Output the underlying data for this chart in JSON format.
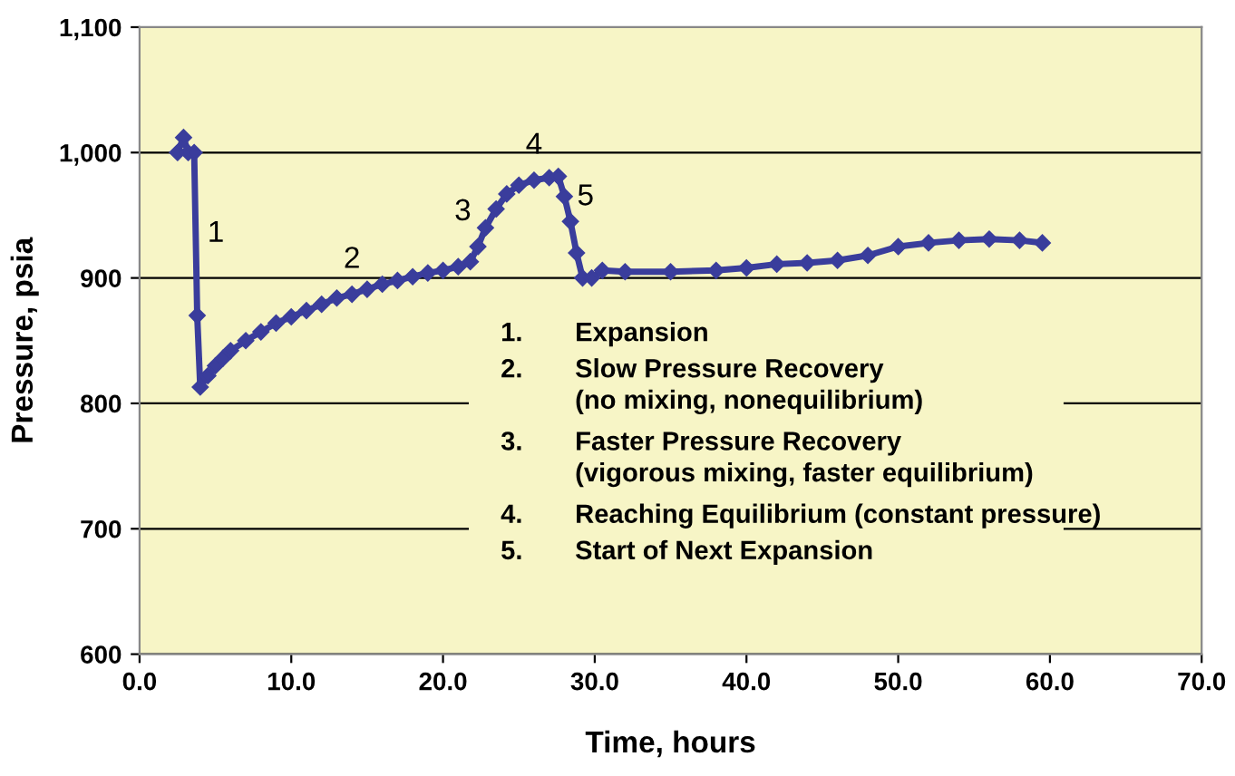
{
  "chart_data": {
    "type": "line",
    "xlabel": "Time, hours",
    "ylabel": "Pressure, psia",
    "x": [
      2.5,
      2.9,
      3.2,
      3.6,
      3.8,
      4.0,
      4.5,
      5,
      5.5,
      6,
      7,
      8,
      9,
      10,
      11,
      12,
      13,
      14,
      15,
      16,
      17,
      18,
      19,
      20,
      21,
      21.8,
      22.3,
      22.8,
      23.5,
      24.2,
      25,
      26,
      27,
      27.6,
      28,
      28.4,
      28.8,
      29.2,
      29.8,
      30.5,
      32,
      35,
      38,
      40,
      42,
      44,
      46,
      48,
      50,
      52,
      54,
      56,
      58,
      59.5
    ],
    "series": [
      {
        "color": "#3a3d9c",
        "values": [
          1000,
          1012,
          1000,
          1000,
          870,
          813,
          822,
          830,
          836,
          842,
          850,
          857,
          864,
          869,
          874,
          879,
          884,
          887,
          891,
          895,
          898,
          901,
          904,
          906,
          909,
          913,
          925,
          940,
          955,
          967,
          974,
          978,
          980,
          981,
          965,
          945,
          920,
          900,
          900,
          906,
          905,
          905,
          906,
          908,
          911,
          912,
          914,
          918,
          925,
          928,
          930,
          931,
          930,
          928
        ]
      }
    ],
    "xlim": [
      0,
      70
    ],
    "ylim": [
      600,
      1100
    ],
    "xticks": [
      {
        "value": 0,
        "label": "0.0"
      },
      {
        "value": 10,
        "label": "10.0"
      },
      {
        "value": 20,
        "label": "20.0"
      },
      {
        "value": 30,
        "label": "30.0"
      },
      {
        "value": 40,
        "label": "40.0"
      },
      {
        "value": 50,
        "label": "50.0"
      },
      {
        "value": 60,
        "label": "60.0"
      },
      {
        "value": 70,
        "label": "70.0"
      }
    ],
    "yticks": [
      600,
      700,
      800,
      900,
      {
        "value": 1000,
        "label": "1,000"
      },
      {
        "value": 1100,
        "label": "1,100"
      }
    ],
    "grid": "y",
    "marker": "diamond",
    "line_style": "solid",
    "annotations": [
      {
        "text": "1",
        "x": 3.7,
        "y": 935
      },
      {
        "text": "2",
        "x": 14,
        "y": 887
      },
      {
        "text": "3",
        "x": 22.3,
        "y": 925
      },
      {
        "text": "4",
        "x": 26,
        "y": 978
      },
      {
        "text": "5",
        "x": 28.4,
        "y": 945
      },
      "1.",
      "Expansion",
      "2.",
      "Slow Pressure Recovery\n(no mixing, nonequilibrium)",
      "3.",
      "Faster Pressure Recovery\n(vigorous mixing, faster equilibrium)",
      "4.",
      "Reaching Equilibrium (constant pressure)",
      "5.",
      "Start of Next Expansion"
    ]
  }
}
